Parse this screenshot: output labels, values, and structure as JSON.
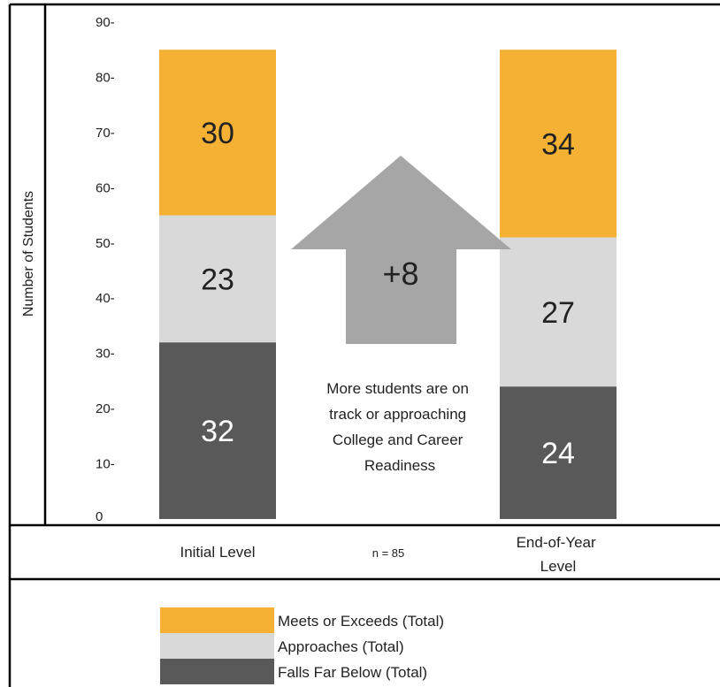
{
  "chart_data": {
    "type": "bar",
    "stacked": true,
    "categories": [
      "Initial Level",
      "End-of-Year Level"
    ],
    "series": [
      {
        "name": "Falls Far Below (Total)",
        "values": [
          32,
          24
        ],
        "color": "#595959"
      },
      {
        "name": "Approaches (Total)",
        "values": [
          23,
          27
        ],
        "color": "#d9d9d9"
      },
      {
        "name": "Meets or Exceeds (Total)",
        "values": [
          30,
          34
        ],
        "color": "#f4b134"
      }
    ],
    "ylabel": "Number of Students",
    "ylim": [
      0,
      90
    ],
    "yticks": [
      0,
      10,
      20,
      30,
      40,
      50,
      60,
      70,
      80,
      90
    ],
    "ytick_suffix": "-",
    "n_label": "n = 85",
    "annotation": {
      "arrow_label": "+8",
      "arrow_color": "#a6a6a6",
      "text": [
        "More students are on",
        "track or approaching",
        "College and Career",
        "Readiness"
      ]
    },
    "legend_order": [
      2,
      1,
      0
    ]
  }
}
